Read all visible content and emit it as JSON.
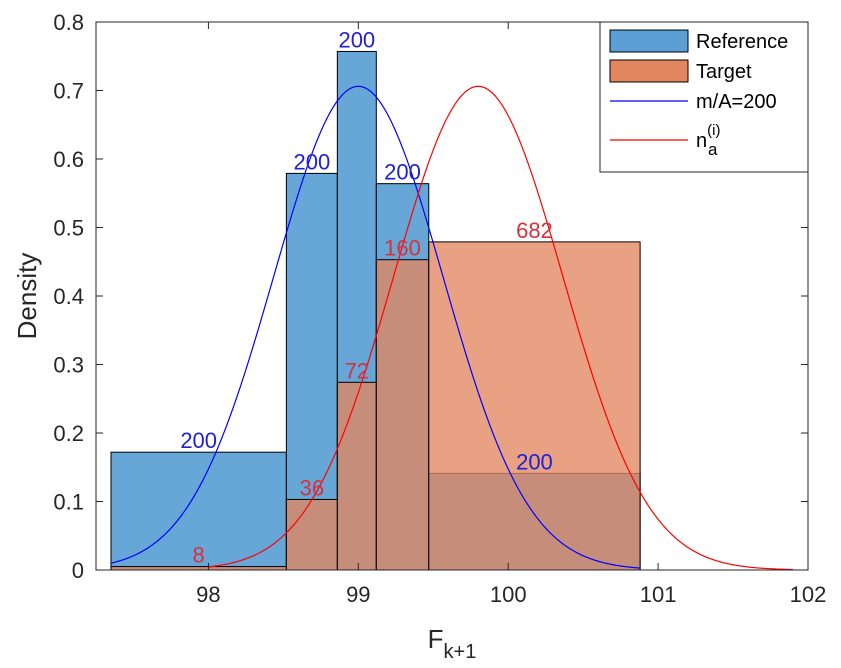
{
  "chart_data": {
    "type": "histogram",
    "xlabel": {
      "base": "F",
      "sub": "k+1"
    },
    "ylabel": "Density",
    "xlim": [
      97.25,
      102
    ],
    "ylim": [
      0,
      0.8
    ],
    "xticks": [
      98,
      99,
      100,
      101,
      102
    ],
    "yticks": [
      0,
      0.1,
      0.2,
      0.3,
      0.4,
      0.5,
      0.6,
      0.7,
      0.8
    ],
    "tick_labels_x": [
      "98",
      "99",
      "100",
      "101",
      "102"
    ],
    "tick_labels_y": [
      "0",
      "0.1",
      "0.2",
      "0.3",
      "0.4",
      "0.5",
      "0.6",
      "0.7",
      "0.8"
    ],
    "grid": false,
    "legend_position": "top-right",
    "series": [
      {
        "name": "Reference",
        "kind": "bars",
        "color": "#5aa0d5",
        "bins": [
          {
            "x0": 97.35,
            "x1": 98.52,
            "density": 0.172,
            "label": "200"
          },
          {
            "x0": 98.52,
            "x1": 98.86,
            "density": 0.579,
            "label": "200"
          },
          {
            "x0": 98.86,
            "x1": 99.12,
            "density": 0.757,
            "label": "200"
          },
          {
            "x0": 99.12,
            "x1": 99.47,
            "density": 0.564,
            "label": "200"
          },
          {
            "x0": 99.47,
            "x1": 100.88,
            "density": 0.141,
            "label": "200"
          }
        ]
      },
      {
        "name": "Target",
        "kind": "bars",
        "color": "#e1865f",
        "bins": [
          {
            "x0": 97.35,
            "x1": 98.52,
            "density": 0.005,
            "label": "8"
          },
          {
            "x0": 98.52,
            "x1": 98.86,
            "density": 0.103,
            "label": "36"
          },
          {
            "x0": 98.86,
            "x1": 99.12,
            "density": 0.274,
            "label": "72"
          },
          {
            "x0": 99.12,
            "x1": 99.47,
            "density": 0.453,
            "label": "160"
          },
          {
            "x0": 99.47,
            "x1": 100.88,
            "density": 0.479,
            "label": "682"
          }
        ]
      },
      {
        "name": "m/A=200",
        "kind": "normal-curve",
        "color": "#0000ff",
        "mean": 99.0,
        "sd": 0.565
      },
      {
        "name": "n_a^(i)",
        "kind": "normal-curve",
        "color": "#ff0000",
        "mean": 99.8,
        "sd": 0.565
      }
    ],
    "legend": [
      {
        "label": "Reference",
        "kind": "patch"
      },
      {
        "label": "Target",
        "kind": "patch"
      },
      {
        "label": "m/A=200",
        "kind": "line"
      },
      {
        "label": "n",
        "sub": "a",
        "sup": "(i)",
        "kind": "line"
      }
    ],
    "label_colors": {
      "reference": "#1f1fd8",
      "target": "#d9303c"
    }
  }
}
